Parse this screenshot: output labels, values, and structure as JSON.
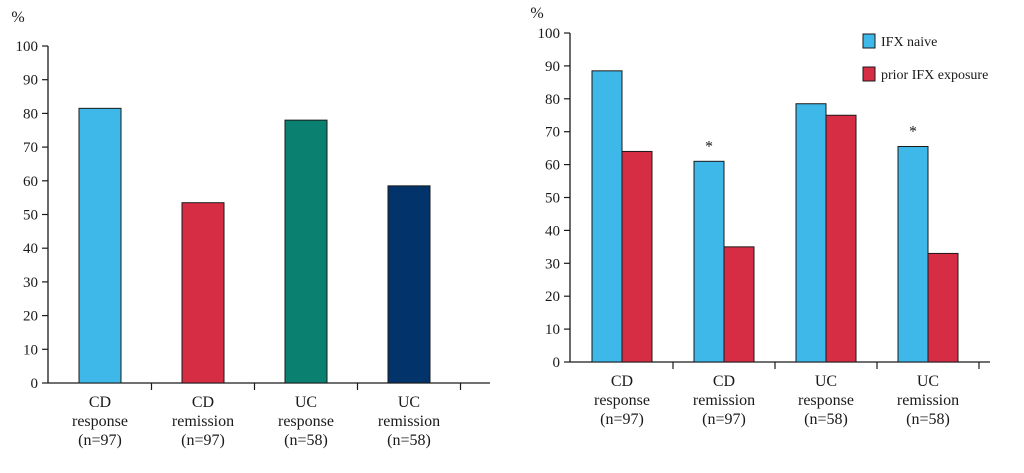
{
  "chart_data": [
    {
      "type": "bar",
      "ylabel": "%",
      "ylim": [
        0,
        100
      ],
      "yticks": [
        0,
        10,
        20,
        30,
        40,
        50,
        60,
        70,
        80,
        90,
        100
      ],
      "categories": [
        [
          "CD",
          "response",
          "(n=97)"
        ],
        [
          "CD",
          "remission",
          "(n=97)"
        ],
        [
          "UC",
          "response",
          "(n=58)"
        ],
        [
          "UC",
          "remission",
          "(n=58)"
        ]
      ],
      "values": [
        81.5,
        53.5,
        78,
        58.5
      ],
      "colors": [
        "#3db8e8",
        "#d62c44",
        "#0a8070",
        "#03336b"
      ]
    },
    {
      "type": "bar",
      "ylabel": "%",
      "ylim": [
        0,
        100
      ],
      "yticks": [
        0,
        10,
        20,
        30,
        40,
        50,
        60,
        70,
        80,
        90,
        100
      ],
      "categories": [
        [
          "CD",
          "response",
          "(n=97)"
        ],
        [
          "CD",
          "remission",
          "(n=97)"
        ],
        [
          "UC",
          "response",
          "(n=58)"
        ],
        [
          "UC",
          "remission",
          "(n=58)"
        ]
      ],
      "series": [
        {
          "name": "IFX naive",
          "values": [
            88.5,
            61,
            78.5,
            65.5
          ],
          "color": "#3db8e8"
        },
        {
          "name": "prior IFX exposure",
          "values": [
            64,
            35,
            75,
            33
          ],
          "color": "#d62c44"
        }
      ],
      "annotations": [
        {
          "category_index": 1,
          "text": "*"
        },
        {
          "category_index": 3,
          "text": "*"
        }
      ],
      "legend": "top-right"
    }
  ]
}
